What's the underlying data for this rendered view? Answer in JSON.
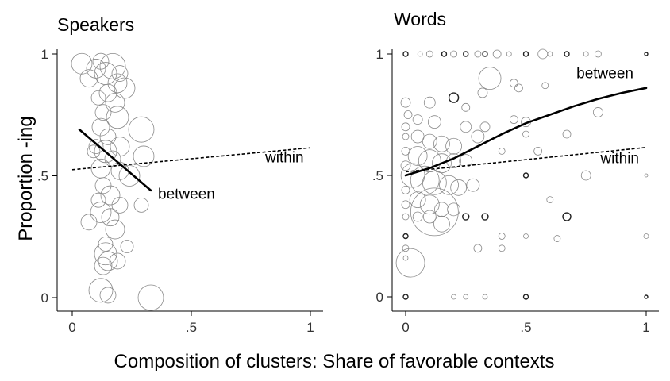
{
  "figure": {
    "xlabel": "Composition of clusters: Share of favorable contexts",
    "ylabel": "Proportion -ing"
  },
  "chart_data": [
    {
      "type": "scatter",
      "title": "Speakers",
      "xlim": [
        0,
        1
      ],
      "ylim": [
        0,
        1
      ],
      "xticks": [
        {
          "v": 0,
          "label": "0"
        },
        {
          "v": 0.5,
          "label": ".5"
        },
        {
          "v": 1,
          "label": "1"
        }
      ],
      "yticks": [
        {
          "v": 0,
          "label": "0"
        },
        {
          "v": 0.5,
          "label": ".5"
        },
        {
          "v": 1,
          "label": "1"
        }
      ],
      "grid": false,
      "points": [
        {
          "x": 0.04,
          "y": 0.96,
          "s": 13
        },
        {
          "x": 0.07,
          "y": 0.9,
          "s": 11
        },
        {
          "x": 0.1,
          "y": 0.94,
          "s": 12
        },
        {
          "x": 0.12,
          "y": 0.97,
          "s": 10
        },
        {
          "x": 0.14,
          "y": 0.92,
          "s": 14
        },
        {
          "x": 0.17,
          "y": 0.95,
          "s": 16
        },
        {
          "x": 0.19,
          "y": 0.88,
          "s": 12
        },
        {
          "x": 0.2,
          "y": 0.92,
          "s": 10
        },
        {
          "x": 0.22,
          "y": 0.86,
          "s": 13
        },
        {
          "x": 0.15,
          "y": 0.84,
          "s": 11
        },
        {
          "x": 0.11,
          "y": 0.82,
          "s": 9
        },
        {
          "x": 0.18,
          "y": 0.8,
          "s": 12
        },
        {
          "x": 0.13,
          "y": 0.76,
          "s": 10
        },
        {
          "x": 0.19,
          "y": 0.74,
          "s": 14
        },
        {
          "x": 0.12,
          "y": 0.7,
          "s": 11
        },
        {
          "x": 0.15,
          "y": 0.66,
          "s": 10
        },
        {
          "x": 0.29,
          "y": 0.69,
          "s": 16
        },
        {
          "x": 0.1,
          "y": 0.62,
          "s": 9
        },
        {
          "x": 0.2,
          "y": 0.62,
          "s": 12
        },
        {
          "x": 0.14,
          "y": 0.6,
          "s": 14
        },
        {
          "x": 0.17,
          "y": 0.57,
          "s": 10
        },
        {
          "x": 0.3,
          "y": 0.58,
          "s": 13
        },
        {
          "x": 0.12,
          "y": 0.53,
          "s": 12
        },
        {
          "x": 0.2,
          "y": 0.52,
          "s": 11
        },
        {
          "x": 0.24,
          "y": 0.5,
          "s": 13
        },
        {
          "x": 0.13,
          "y": 0.46,
          "s": 10
        },
        {
          "x": 0.16,
          "y": 0.42,
          "s": 12
        },
        {
          "x": 0.11,
          "y": 0.4,
          "s": 9
        },
        {
          "x": 0.2,
          "y": 0.38,
          "s": 10
        },
        {
          "x": 0.12,
          "y": 0.35,
          "s": 13
        },
        {
          "x": 0.16,
          "y": 0.33,
          "s": 11
        },
        {
          "x": 0.07,
          "y": 0.31,
          "s": 10
        },
        {
          "x": 0.18,
          "y": 0.28,
          "s": 12
        },
        {
          "x": 0.14,
          "y": 0.22,
          "s": 9
        },
        {
          "x": 0.14,
          "y": 0.18,
          "s": 14
        },
        {
          "x": 0.15,
          "y": 0.15,
          "s": 12
        },
        {
          "x": 0.13,
          "y": 0.13,
          "s": 11
        },
        {
          "x": 0.19,
          "y": 0.15,
          "s": 10
        },
        {
          "x": 0.12,
          "y": 0.03,
          "s": 15
        },
        {
          "x": 0.15,
          "y": 0.01,
          "s": 10
        },
        {
          "x": 0.33,
          "y": 0.0,
          "s": 16
        },
        {
          "x": 0.29,
          "y": 0.38,
          "s": 9
        },
        {
          "x": 0.23,
          "y": 0.21,
          "s": 8
        },
        {
          "x": 0.09,
          "y": 0.6,
          "s": 8
        }
      ],
      "lines": [
        {
          "name": "between",
          "style": "solid",
          "x": [
            0.03,
            0.33
          ],
          "y": [
            0.69,
            0.44
          ]
        },
        {
          "name": "within",
          "style": "dashed",
          "x": [
            0.0,
            1.0
          ],
          "y": [
            0.525,
            0.615
          ]
        }
      ],
      "annotations": [
        {
          "text": "within",
          "x": 0.81,
          "y": 0.555
        },
        {
          "text": "between",
          "x": 0.36,
          "y": 0.405
        }
      ]
    },
    {
      "type": "scatter",
      "title": "Words",
      "xlim": [
        0,
        1
      ],
      "ylim": [
        0,
        1
      ],
      "xticks": [
        {
          "v": 0,
          "label": "0"
        },
        {
          "v": 0.5,
          "label": ".5"
        },
        {
          "v": 1,
          "label": "1"
        }
      ],
      "yticks": [
        {
          "v": 0,
          "label": "0"
        },
        {
          "v": 0.5,
          "label": ".5"
        },
        {
          "v": 1,
          "label": "1"
        }
      ],
      "grid": false,
      "points": [
        {
          "x": 0.0,
          "y": 1.0,
          "s": 3,
          "d": 1
        },
        {
          "x": 0.06,
          "y": 1.0,
          "s": 3
        },
        {
          "x": 0.1,
          "y": 1.0,
          "s": 4
        },
        {
          "x": 0.16,
          "y": 1.0,
          "s": 3,
          "d": 1
        },
        {
          "x": 0.2,
          "y": 1.0,
          "s": 4
        },
        {
          "x": 0.25,
          "y": 1.0,
          "s": 3,
          "d": 1
        },
        {
          "x": 0.3,
          "y": 1.0,
          "s": 4
        },
        {
          "x": 0.33,
          "y": 1.0,
          "s": 3,
          "d": 1
        },
        {
          "x": 0.38,
          "y": 1.0,
          "s": 5
        },
        {
          "x": 0.43,
          "y": 1.0,
          "s": 3
        },
        {
          "x": 0.5,
          "y": 1.0,
          "s": 3,
          "d": 1
        },
        {
          "x": 0.57,
          "y": 1.0,
          "s": 6
        },
        {
          "x": 0.6,
          "y": 1.0,
          "s": 3
        },
        {
          "x": 0.67,
          "y": 1.0,
          "s": 3,
          "d": 1
        },
        {
          "x": 0.75,
          "y": 1.0,
          "s": 3
        },
        {
          "x": 0.8,
          "y": 1.0,
          "s": 4
        },
        {
          "x": 1.0,
          "y": 1.0,
          "s": 2,
          "d": 1
        },
        {
          "x": 0.35,
          "y": 0.9,
          "s": 14
        },
        {
          "x": 0.45,
          "y": 0.88,
          "s": 5
        },
        {
          "x": 0.47,
          "y": 0.86,
          "s": 5
        },
        {
          "x": 0.58,
          "y": 0.87,
          "s": 4
        },
        {
          "x": 0.32,
          "y": 0.84,
          "s": 6
        },
        {
          "x": 0.2,
          "y": 0.82,
          "s": 6,
          "d": 1
        },
        {
          "x": 0.1,
          "y": 0.8,
          "s": 7
        },
        {
          "x": 0.25,
          "y": 0.78,
          "s": 5
        },
        {
          "x": 0.0,
          "y": 0.8,
          "s": 6
        },
        {
          "x": 0.01,
          "y": 0.75,
          "s": 5
        },
        {
          "x": 0.05,
          "y": 0.73,
          "s": 6
        },
        {
          "x": 0.12,
          "y": 0.72,
          "s": 8
        },
        {
          "x": 0.45,
          "y": 0.73,
          "s": 5
        },
        {
          "x": 0.5,
          "y": 0.72,
          "s": 6
        },
        {
          "x": 0.25,
          "y": 0.7,
          "s": 7
        },
        {
          "x": 0.33,
          "y": 0.7,
          "s": 6
        },
        {
          "x": 0.8,
          "y": 0.76,
          "s": 6
        },
        {
          "x": 0.0,
          "y": 0.7,
          "s": 5
        },
        {
          "x": 0.0,
          "y": 0.66,
          "s": 4
        },
        {
          "x": 0.05,
          "y": 0.66,
          "s": 8
        },
        {
          "x": 0.1,
          "y": 0.64,
          "s": 9
        },
        {
          "x": 0.15,
          "y": 0.63,
          "s": 10
        },
        {
          "x": 0.2,
          "y": 0.62,
          "s": 10
        },
        {
          "x": 0.3,
          "y": 0.66,
          "s": 8
        },
        {
          "x": 0.0,
          "y": 0.6,
          "s": 5
        },
        {
          "x": 0.05,
          "y": 0.58,
          "s": 12
        },
        {
          "x": 0.1,
          "y": 0.56,
          "s": 14
        },
        {
          "x": 0.15,
          "y": 0.55,
          "s": 12
        },
        {
          "x": 0.2,
          "y": 0.56,
          "s": 9
        },
        {
          "x": 0.25,
          "y": 0.56,
          "s": 8
        },
        {
          "x": 0.0,
          "y": 0.54,
          "s": 6
        },
        {
          "x": 0.03,
          "y": 0.5,
          "s": 15
        },
        {
          "x": 0.08,
          "y": 0.48,
          "s": 18
        },
        {
          "x": 0.12,
          "y": 0.47,
          "s": 15
        },
        {
          "x": 0.18,
          "y": 0.46,
          "s": 12
        },
        {
          "x": 0.22,
          "y": 0.45,
          "s": 10
        },
        {
          "x": 0.28,
          "y": 0.46,
          "s": 8
        },
        {
          "x": 0.0,
          "y": 0.44,
          "s": 5
        },
        {
          "x": 0.05,
          "y": 0.4,
          "s": 10
        },
        {
          "x": 0.1,
          "y": 0.38,
          "s": 12
        },
        {
          "x": 0.15,
          "y": 0.36,
          "s": 9
        },
        {
          "x": 0.2,
          "y": 0.36,
          "s": 8
        },
        {
          "x": 0.0,
          "y": 0.38,
          "s": 5
        },
        {
          "x": 0.0,
          "y": 0.33,
          "s": 4
        },
        {
          "x": 0.05,
          "y": 0.33,
          "s": 6
        },
        {
          "x": 0.1,
          "y": 0.33,
          "s": 8
        },
        {
          "x": 0.15,
          "y": 0.3,
          "s": 10
        },
        {
          "x": 0.12,
          "y": 0.35,
          "s": 30
        },
        {
          "x": 0.25,
          "y": 0.33,
          "s": 4,
          "d": 1
        },
        {
          "x": 0.33,
          "y": 0.33,
          "s": 4,
          "d": 1
        },
        {
          "x": 0.67,
          "y": 0.33,
          "s": 5,
          "d": 1
        },
        {
          "x": 0.0,
          "y": 0.25,
          "s": 3,
          "d": 1
        },
        {
          "x": 0.02,
          "y": 0.14,
          "s": 18
        },
        {
          "x": 0.0,
          "y": 0.2,
          "s": 4
        },
        {
          "x": 0.0,
          "y": 0.16,
          "s": 3
        },
        {
          "x": 0.3,
          "y": 0.2,
          "s": 5
        },
        {
          "x": 0.4,
          "y": 0.2,
          "s": 4
        },
        {
          "x": 0.4,
          "y": 0.25,
          "s": 4
        },
        {
          "x": 0.5,
          "y": 0.25,
          "s": 3
        },
        {
          "x": 0.63,
          "y": 0.24,
          "s": 4
        },
        {
          "x": 0.5,
          "y": 0.5,
          "s": 3,
          "d": 1
        },
        {
          "x": 0.6,
          "y": 0.4,
          "s": 4
        },
        {
          "x": 0.55,
          "y": 0.6,
          "s": 5
        },
        {
          "x": 0.67,
          "y": 0.67,
          "s": 5
        },
        {
          "x": 0.75,
          "y": 0.5,
          "s": 6
        },
        {
          "x": 1.0,
          "y": 0.5,
          "s": 2
        },
        {
          "x": 1.0,
          "y": 0.25,
          "s": 3
        },
        {
          "x": 0.5,
          "y": 0.67,
          "s": 4
        },
        {
          "x": 0.4,
          "y": 0.6,
          "s": 4
        },
        {
          "x": 0.0,
          "y": 0.0,
          "s": 3,
          "d": 1
        },
        {
          "x": 0.2,
          "y": 0.0,
          "s": 3
        },
        {
          "x": 0.25,
          "y": 0.0,
          "s": 3
        },
        {
          "x": 0.33,
          "y": 0.0,
          "s": 3
        },
        {
          "x": 0.5,
          "y": 0.0,
          "s": 3,
          "d": 1
        },
        {
          "x": 1.0,
          "y": 0.0,
          "s": 2,
          "d": 1
        }
      ],
      "lines": [
        {
          "name": "between",
          "style": "solid",
          "x": [
            0.0,
            0.1,
            0.2,
            0.3,
            0.4,
            0.5,
            0.6,
            0.7,
            0.8,
            0.9,
            1.0
          ],
          "y": [
            0.5,
            0.53,
            0.57,
            0.62,
            0.67,
            0.715,
            0.75,
            0.785,
            0.815,
            0.84,
            0.86
          ]
        },
        {
          "name": "within",
          "style": "dashed",
          "x": [
            0.0,
            1.0
          ],
          "y": [
            0.515,
            0.615
          ]
        }
      ],
      "annotations": [
        {
          "text": "between",
          "x": 0.71,
          "y": 0.9
        },
        {
          "text": "within",
          "x": 0.81,
          "y": 0.55
        }
      ]
    }
  ]
}
